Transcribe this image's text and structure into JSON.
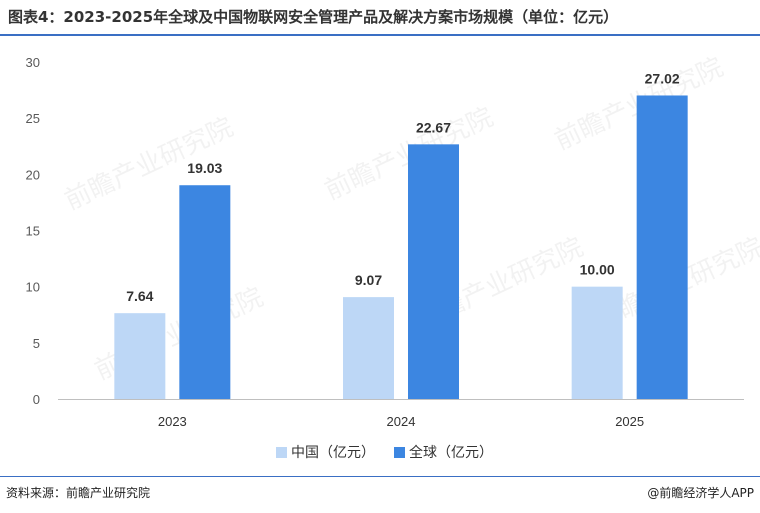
{
  "title": "图表4：2023-2025年全球及中国物联网安全管理产品及解决方案市场规模（单位：亿元）",
  "footer": {
    "source": "资料来源：前瞻产业研究院",
    "brand": "@前瞻经济学人APP"
  },
  "watermark": "前瞻产业研究院",
  "colors": {
    "china": "#bdd7f6",
    "global": "#3c86e1",
    "title_rule": "#3a6fc4"
  },
  "chart_data": {
    "type": "bar",
    "categories": [
      "2023",
      "2024",
      "2025"
    ],
    "series": [
      {
        "name": "中国（亿元）",
        "values": [
          7.64,
          9.07,
          10.0
        ],
        "labels": [
          "7.64",
          "9.07",
          "10.00"
        ]
      },
      {
        "name": "全球（亿元）",
        "values": [
          19.03,
          22.67,
          27.02
        ],
        "labels": [
          "19.03",
          "22.67",
          "27.02"
        ]
      }
    ],
    "ylim": [
      0,
      30
    ],
    "yticks": [
      "0",
      "5",
      "10",
      "15",
      "20",
      "25",
      "30"
    ],
    "legend": "bottom",
    "grid": false
  }
}
